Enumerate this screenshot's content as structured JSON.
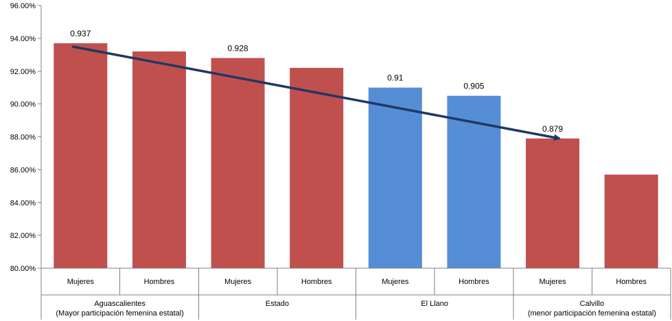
{
  "chart_data": {
    "type": "bar",
    "y_tick_labels": [
      "80.00%",
      "82.00%",
      "84.00%",
      "86.00%",
      "88.00%",
      "90.00%",
      "92.00%",
      "94.00%",
      "96.00%"
    ],
    "ylim": [
      0.8,
      0.96
    ],
    "y_tick_step": 0.02,
    "grid": false,
    "groups": [
      {
        "label_line1": "Aguascalientes",
        "label_line2": "(Mayor participación femenina estatal)"
      },
      {
        "label_line1": "Estado",
        "label_line2": ""
      },
      {
        "label_line1": "El Llano",
        "label_line2": ""
      },
      {
        "label_line1": "Calvillo",
        "label_line2": "(menor participación femenina estatal)"
      }
    ],
    "bars": [
      {
        "category": "Mujeres",
        "group": 0,
        "value": 0.937,
        "data_label": "0.937",
        "color": "#C0504D"
      },
      {
        "category": "Hombres",
        "group": 0,
        "value": 0.932,
        "data_label": "",
        "color": "#C0504D"
      },
      {
        "category": "Mujeres",
        "group": 1,
        "value": 0.928,
        "data_label": "0.928",
        "color": "#C0504D"
      },
      {
        "category": "Hombres",
        "group": 1,
        "value": 0.922,
        "data_label": "",
        "color": "#C0504D"
      },
      {
        "category": "Mujeres",
        "group": 2,
        "value": 0.91,
        "data_label": "0.91",
        "color": "#558ED5"
      },
      {
        "category": "Hombres",
        "group": 2,
        "value": 0.905,
        "data_label": "0.905",
        "color": "#558ED5"
      },
      {
        "category": "Mujeres",
        "group": 3,
        "value": 0.879,
        "data_label": "0.879",
        "color": "#C0504D"
      },
      {
        "category": "Hombres",
        "group": 3,
        "value": 0.857,
        "data_label": "",
        "color": "#C0504D"
      }
    ],
    "trend_arrow": {
      "from": {
        "bar": 0,
        "value": 0.935
      },
      "to": {
        "bar": 6,
        "value": 0.879
      },
      "color": "#1F3864"
    },
    "colors": {
      "women_highlight": "#558ED5",
      "default_bar": "#C0504D",
      "axis": "#808080"
    }
  }
}
